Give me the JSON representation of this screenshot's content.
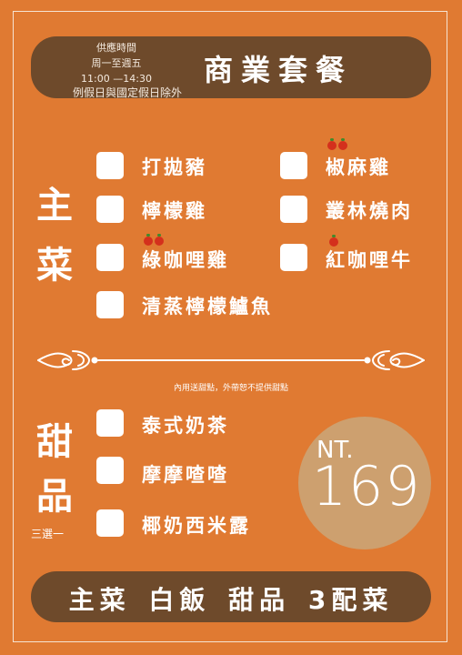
{
  "header": {
    "hours_title": "供應時間",
    "days": "周一至週五",
    "time": "11:00 —14:30",
    "exception": "例假日與國定假日除外",
    "title": "商業套餐"
  },
  "mains": {
    "label_line1": "主",
    "label_line2": "菜",
    "items": [
      {
        "name": "打拋豬",
        "spicy": 0
      },
      {
        "name": "椒麻雞",
        "spicy": 2
      },
      {
        "name": "檸檬雞",
        "spicy": 0
      },
      {
        "name": "叢林燒肉",
        "spicy": 0
      },
      {
        "name": "綠咖哩雞",
        "spicy": 2
      },
      {
        "name": "紅咖哩牛",
        "spicy": 1
      },
      {
        "name": "清蒸檸檬鱸魚",
        "spicy": 0
      }
    ]
  },
  "dessert": {
    "note": "內用送甜點，外帶恕不提供甜點",
    "label_line1": "甜",
    "label_line2": "品",
    "choose": "三選一",
    "items": [
      "泰式奶茶",
      "摩摩喳喳",
      "椰奶西米露"
    ]
  },
  "price": {
    "currency": "NT.",
    "amount": "169"
  },
  "footer": {
    "text": "主菜 白飯 甜品 3配菜"
  },
  "colors": {
    "background": "#E07A32",
    "pill": "#6E4A2B",
    "price_circle": "#CDA06F"
  }
}
